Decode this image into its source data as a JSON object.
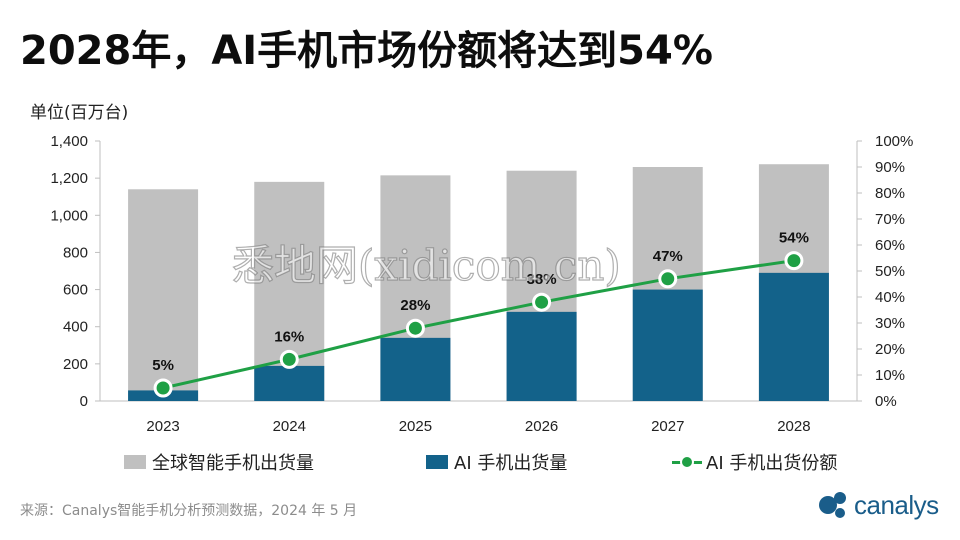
{
  "title": "2028年，AI手机市场份额将达到54%",
  "unit_label": "单位(百万台)",
  "colors": {
    "total_bar": "#c0c0c0",
    "ai_bar": "#13628a",
    "share_line": "#1fa045",
    "logo": "#1a5d8a"
  },
  "chart_data": {
    "type": "bar",
    "categories": [
      "2023",
      "2024",
      "2025",
      "2026",
      "2027",
      "2028"
    ],
    "series": [
      {
        "name": "全球智能手机出货量",
        "type": "bar",
        "values": [
          1140,
          1180,
          1215,
          1240,
          1260,
          1275
        ]
      },
      {
        "name": "AI 手机出货量",
        "type": "bar",
        "values": [
          57,
          189,
          340,
          480,
          600,
          690
        ]
      },
      {
        "name": "AI 手机出货份额",
        "type": "line",
        "axis": "right",
        "values": [
          5,
          16,
          28,
          38,
          47,
          54
        ],
        "labels": [
          "5%",
          "16%",
          "28%",
          "38%",
          "47%",
          "54%"
        ]
      }
    ],
    "ylim": [
      0,
      1400
    ],
    "y_ticks": [
      "0",
      "200",
      "400",
      "600",
      "800",
      "1,000",
      "1,200",
      "1,400"
    ],
    "y2lim": [
      0,
      100
    ],
    "y2_ticks": [
      "0%",
      "10%",
      "20%",
      "30%",
      "40%",
      "50%",
      "60%",
      "70%",
      "80%",
      "90%",
      "100%"
    ],
    "grid": false,
    "legend_position": "bottom"
  },
  "legend": {
    "total": "全球智能手机出货量",
    "ai": "AI 手机出货量",
    "share": "AI 手机出货份额"
  },
  "source": "来源：Canalys智能手机分析预测数据，2024 年 5 月",
  "logo_text": "canalys",
  "watermark": "悉地网(xidicom.cn)"
}
